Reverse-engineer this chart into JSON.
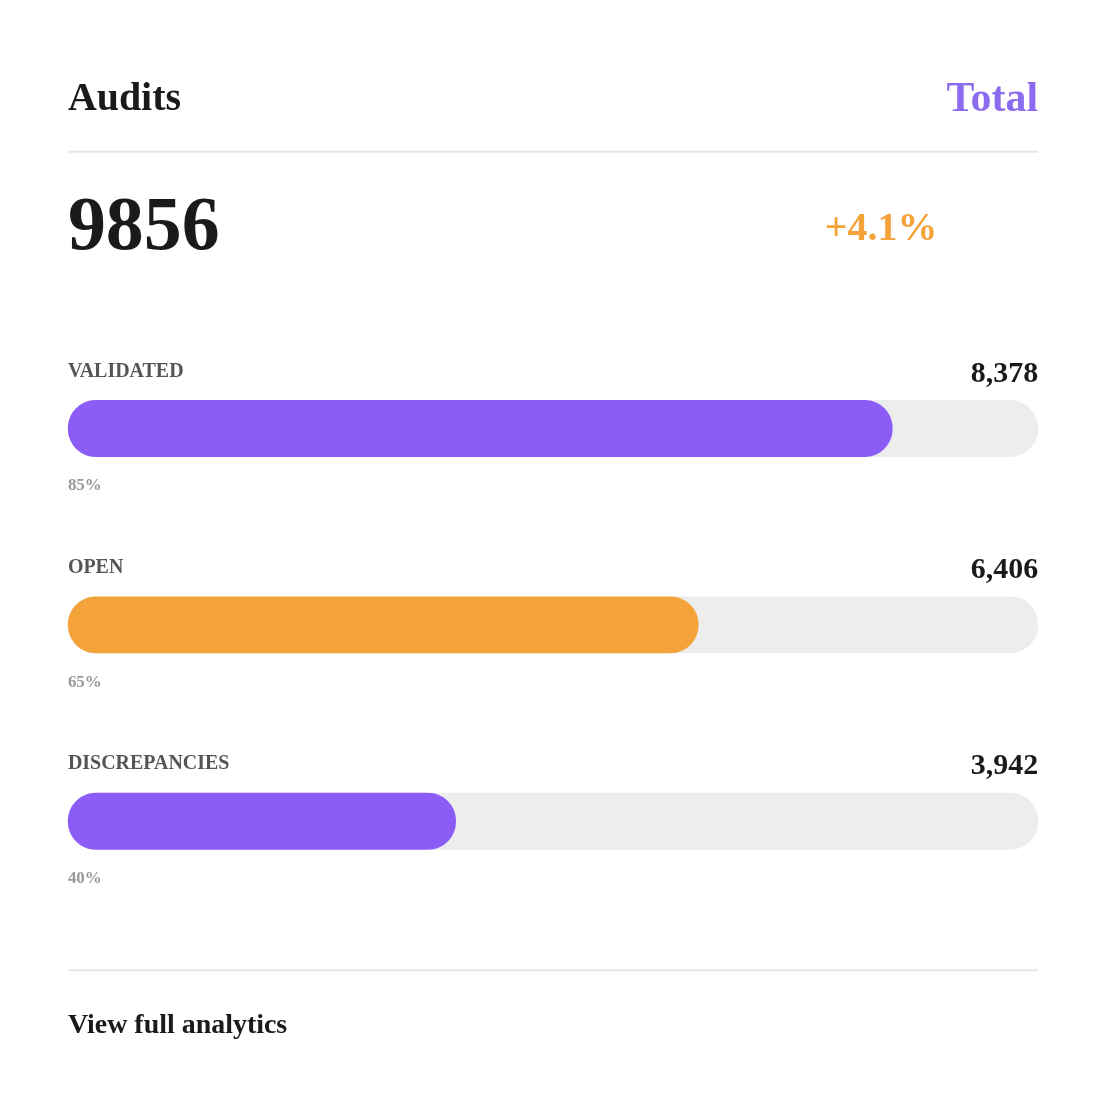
{
  "chart_data": {
    "type": "bar",
    "orientation": "horizontal",
    "title": "Audits",
    "categories": [
      "VALIDATED",
      "OPEN",
      "DISCREPANCIES"
    ],
    "values": [
      85,
      65,
      40
    ],
    "colors": [
      "#8b5cf6",
      "#f4a23a",
      "#8b5cf6"
    ],
    "value_labels": [
      "85%",
      "65%",
      "40%"
    ],
    "xlim": [
      0,
      100
    ],
    "tick_labels": false,
    "annotations": [
      "Total",
      "9856",
      "+4.1%",
      "View full analytics",
      "8,378",
      "6,406",
      "3,942"
    ]
  }
}
